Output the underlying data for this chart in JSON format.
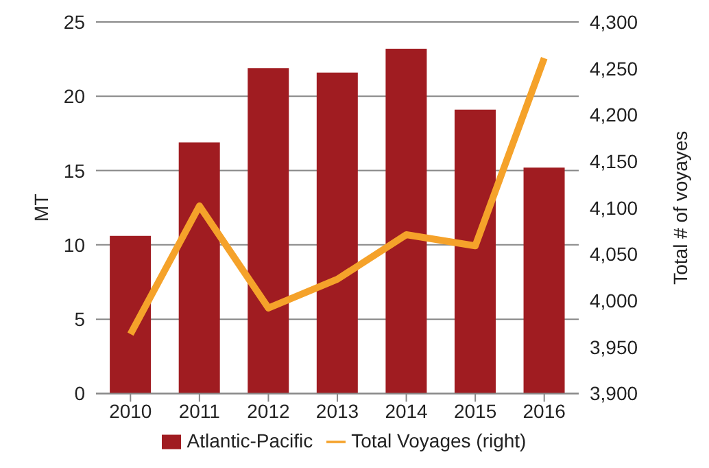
{
  "chart_data": {
    "type": "bar",
    "categories": [
      "2010",
      "2011",
      "2012",
      "2013",
      "2014",
      "2015",
      "2016"
    ],
    "series": [
      {
        "name": "Atlantic-Pacific",
        "color": "#a01c21",
        "values": [
          10.6,
          16.9,
          21.9,
          21.6,
          23.2,
          19.1,
          15.2
        ]
      },
      {
        "name": "Total Voyages (right)",
        "type": "line",
        "axis": "y2",
        "color": "#f5a22a",
        "values": [
          3964,
          4102,
          3992,
          4023,
          4071,
          4059,
          4261
        ]
      }
    ],
    "ylabel": "MT",
    "y2label": "Total # of voyayes",
    "ylim": [
      0,
      25
    ],
    "yticks": [
      0,
      5,
      10,
      15,
      20,
      25
    ],
    "y2lim": [
      3900,
      4300
    ],
    "y2ticks": [
      {
        "value": 3900,
        "label": "3,900"
      },
      {
        "value": 3950,
        "label": "3,950"
      },
      {
        "value": 4000,
        "label": "4,000"
      },
      {
        "value": 4050,
        "label": "4,050"
      },
      {
        "value": 4100,
        "label": "4,100"
      },
      {
        "value": 4150,
        "label": "4,150"
      },
      {
        "value": 4200,
        "label": "4,200"
      },
      {
        "value": 4250,
        "label": "4,250"
      },
      {
        "value": 4300,
        "label": "4,300"
      }
    ],
    "grid": "y",
    "legend": "bottom",
    "marker": "none"
  }
}
